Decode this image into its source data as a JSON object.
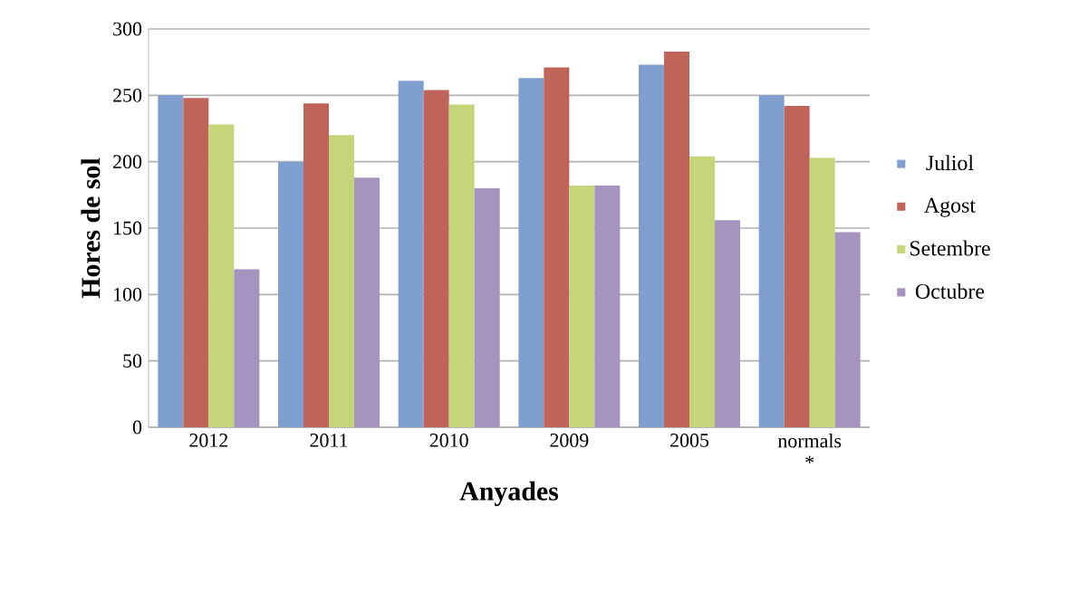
{
  "chart_data": {
    "type": "bar",
    "xlabel": "Anyades",
    "ylabel": "Hores de sol",
    "categories": [
      "2012",
      "2011",
      "2010",
      "2009",
      "2005",
      "normals *"
    ],
    "series": [
      {
        "name": "Juliol",
        "color": "#7f9fd0",
        "values": [
          250,
          200,
          261,
          263,
          273,
          250
        ]
      },
      {
        "name": "Agost",
        "color": "#c0645a",
        "values": [
          248,
          244,
          254,
          271,
          283,
          242
        ]
      },
      {
        "name": "Setembre",
        "color": "#c5d67a",
        "values": [
          228,
          220,
          243,
          182,
          204,
          203
        ]
      },
      {
        "name": "Octubre",
        "color": "#a593c0",
        "values": [
          119,
          188,
          180,
          182,
          156,
          147
        ]
      }
    ],
    "ylim": [
      0,
      300
    ],
    "yticks": [
      0,
      50,
      100,
      150,
      200,
      250,
      300
    ],
    "grid": "y",
    "legend": "right"
  }
}
